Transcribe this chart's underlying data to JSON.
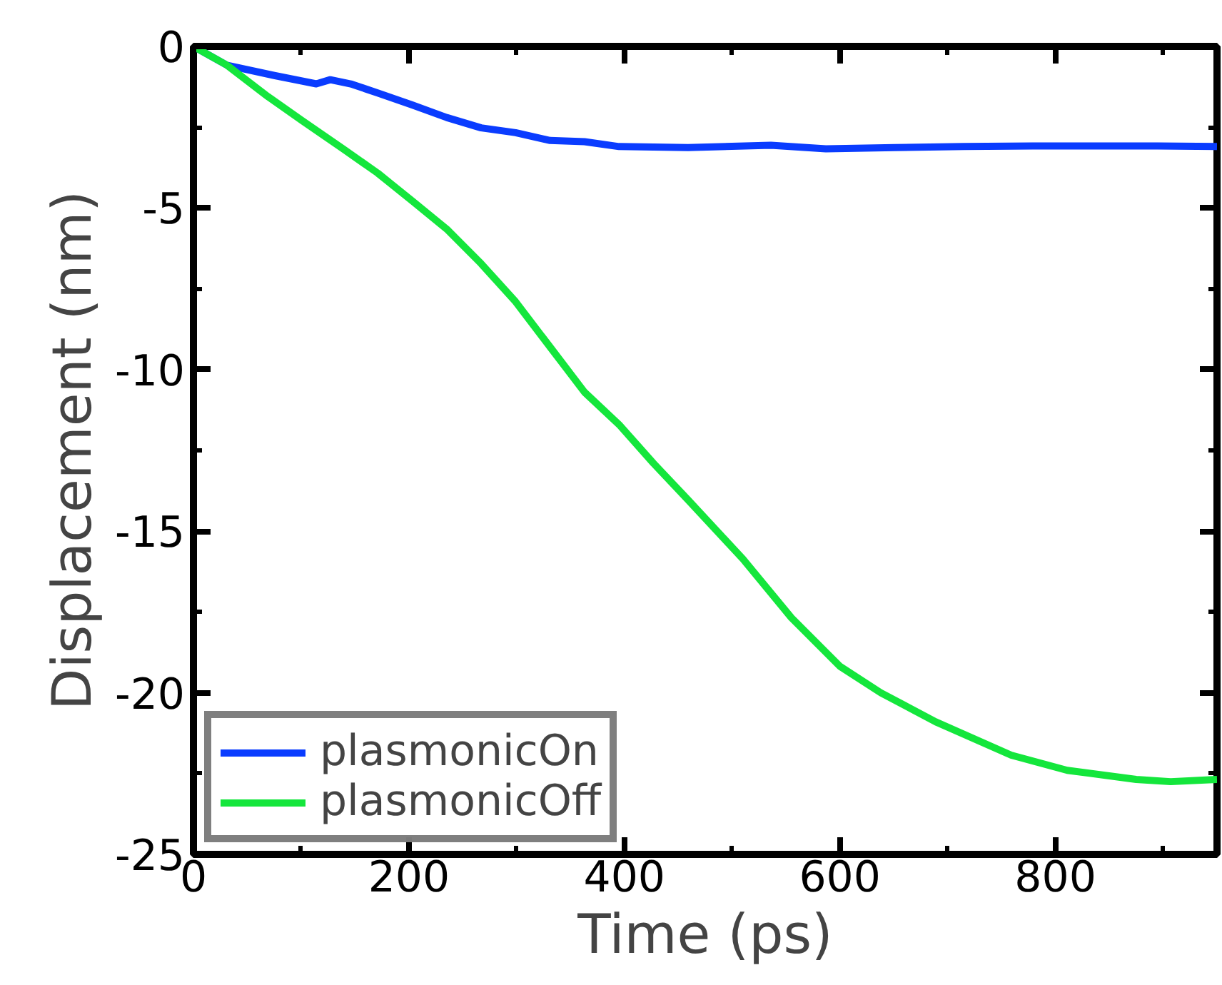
{
  "chart_data": {
    "type": "line",
    "xlabel": "Time (ps)",
    "ylabel": "Displacement (nm)",
    "xlim": [
      0,
      950
    ],
    "ylim": [
      -25,
      0
    ],
    "xticks": [
      0,
      200,
      400,
      600,
      800
    ],
    "yticks": [
      -25,
      -20,
      -15,
      -10,
      -5,
      0
    ],
    "grid": false,
    "legend": "bottom left",
    "line_style": "solid",
    "marker": "none",
    "series": [
      {
        "name": "plasmonicOn",
        "color": "#0a3cff",
        "x": [
          0,
          31,
          75,
          114,
          127,
          146,
          171,
          203,
          235,
          267,
          299,
          331,
          363,
          395,
          459,
          536,
          587,
          651,
          715,
          779,
          843,
          895,
          950
        ],
        "values": [
          0,
          -0.58,
          -0.9,
          -1.16,
          -1.03,
          -1.16,
          -1.44,
          -1.81,
          -2.2,
          -2.52,
          -2.67,
          -2.91,
          -2.95,
          -3.1,
          -3.13,
          -3.06,
          -3.17,
          -3.13,
          -3.1,
          -3.08,
          -3.08,
          -3.08,
          -3.1
        ]
      },
      {
        "name": "plasmonicOff",
        "color": "#14e63c",
        "x": [
          0,
          31,
          69,
          101,
          139,
          171,
          203,
          235,
          267,
          299,
          331,
          363,
          395,
          427,
          459,
          510,
          555,
          600,
          638,
          689,
          759,
          811,
          875,
          907,
          950
        ],
        "values": [
          0,
          -0.58,
          -1.55,
          -2.3,
          -3.17,
          -3.92,
          -4.78,
          -5.65,
          -6.72,
          -7.9,
          -9.3,
          -10.7,
          -11.7,
          -12.9,
          -14.03,
          -15.86,
          -17.68,
          -19.18,
          -20.0,
          -20.9,
          -21.93,
          -22.4,
          -22.68,
          -22.75,
          -22.68
        ]
      }
    ]
  }
}
